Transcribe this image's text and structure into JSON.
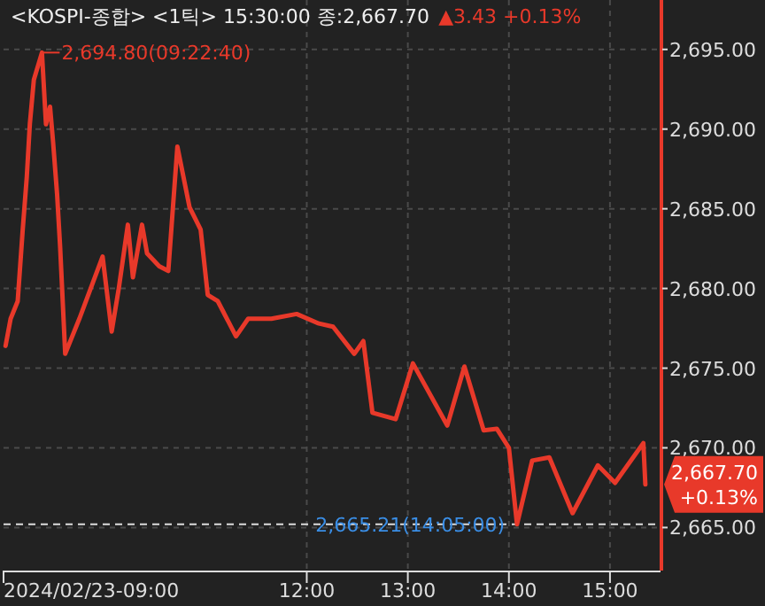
{
  "chart_data": {
    "type": "line",
    "title": "<KOSPI-종합> <1틱> 15:30:00 종:2,667.70",
    "subtitle": "▲3.43 +0.13%",
    "annotations": [
      {
        "text": "2,694.80(09:22:40)",
        "x": 9.38,
        "y": 2694.8
      },
      "2,667.70 +0.13%"
    ],
    "ref_lines": [
      {
        "axis": "y",
        "value": 2665.21,
        "label": "2,665.21(14:05:00)",
        "line_style": "dashed"
      }
    ],
    "series": [
      {
        "color": "#e8392a",
        "x": [
          9.02,
          9.07,
          9.14,
          9.19,
          9.23,
          9.26,
          9.3,
          9.38,
          9.42,
          9.46,
          9.49,
          9.53,
          9.56,
          9.61,
          9.75,
          9.88,
          9.98,
          10.07,
          10.14,
          10.23,
          10.28,
          10.37,
          10.42,
          10.54,
          10.63,
          10.72,
          10.84,
          10.95,
          11.02,
          11.12,
          11.3,
          11.42,
          11.65,
          11.9,
          12.12,
          12.26,
          12.47,
          12.56,
          12.65,
          12.88,
          13.05,
          13.39,
          13.56,
          13.75,
          13.88,
          14.0,
          14.08,
          14.23,
          14.4,
          14.63,
          14.88,
          15.05,
          15.33,
          15.35
        ],
        "values": [
          2676.4,
          2678.1,
          2679.2,
          2683.7,
          2687.0,
          2690.3,
          2693.1,
          2694.8,
          2690.3,
          2691.4,
          2689.2,
          2685.9,
          2682.6,
          2675.9,
          2678.1,
          2680.3,
          2682.0,
          2677.3,
          2680.0,
          2684.0,
          2680.7,
          2684.0,
          2682.2,
          2681.4,
          2681.1,
          2688.9,
          2685.1,
          2683.7,
          2679.6,
          2679.2,
          2677.0,
          2678.1,
          2678.1,
          2678.4,
          2677.8,
          2677.6,
          2675.9,
          2676.7,
          2672.2,
          2671.8,
          2675.3,
          2671.4,
          2675.1,
          2671.1,
          2671.2,
          2670.0,
          2665.2,
          2669.2,
          2669.4,
          2665.9,
          2668.9,
          2667.8,
          2670.3,
          2667.7
        ]
      }
    ],
    "xlim": [
      9,
      15.5
    ],
    "ylim": [
      2662.3,
      2698.1
    ],
    "xticks": [
      {
        "value": 9,
        "label": "2024/02/23-09:00"
      },
      {
        "value": 12,
        "label": "12:00"
      },
      {
        "value": 13,
        "label": "13:00"
      },
      {
        "value": 14,
        "label": "14:00"
      },
      {
        "value": 15,
        "label": "15:00"
      }
    ],
    "yticks": [
      {
        "value": 2665,
        "label": "2,665.00"
      },
      {
        "value": 2670,
        "label": "2,670.00"
      },
      {
        "value": 2675,
        "label": "2,675.00"
      },
      {
        "value": 2680,
        "label": "2,680.00"
      },
      {
        "value": 2685,
        "label": "2,685.00"
      },
      {
        "value": 2690,
        "label": "2,690.00"
      },
      {
        "value": 2695,
        "label": "2,695.00"
      }
    ],
    "grid": true,
    "line_style": "solid",
    "marker": "none"
  }
}
